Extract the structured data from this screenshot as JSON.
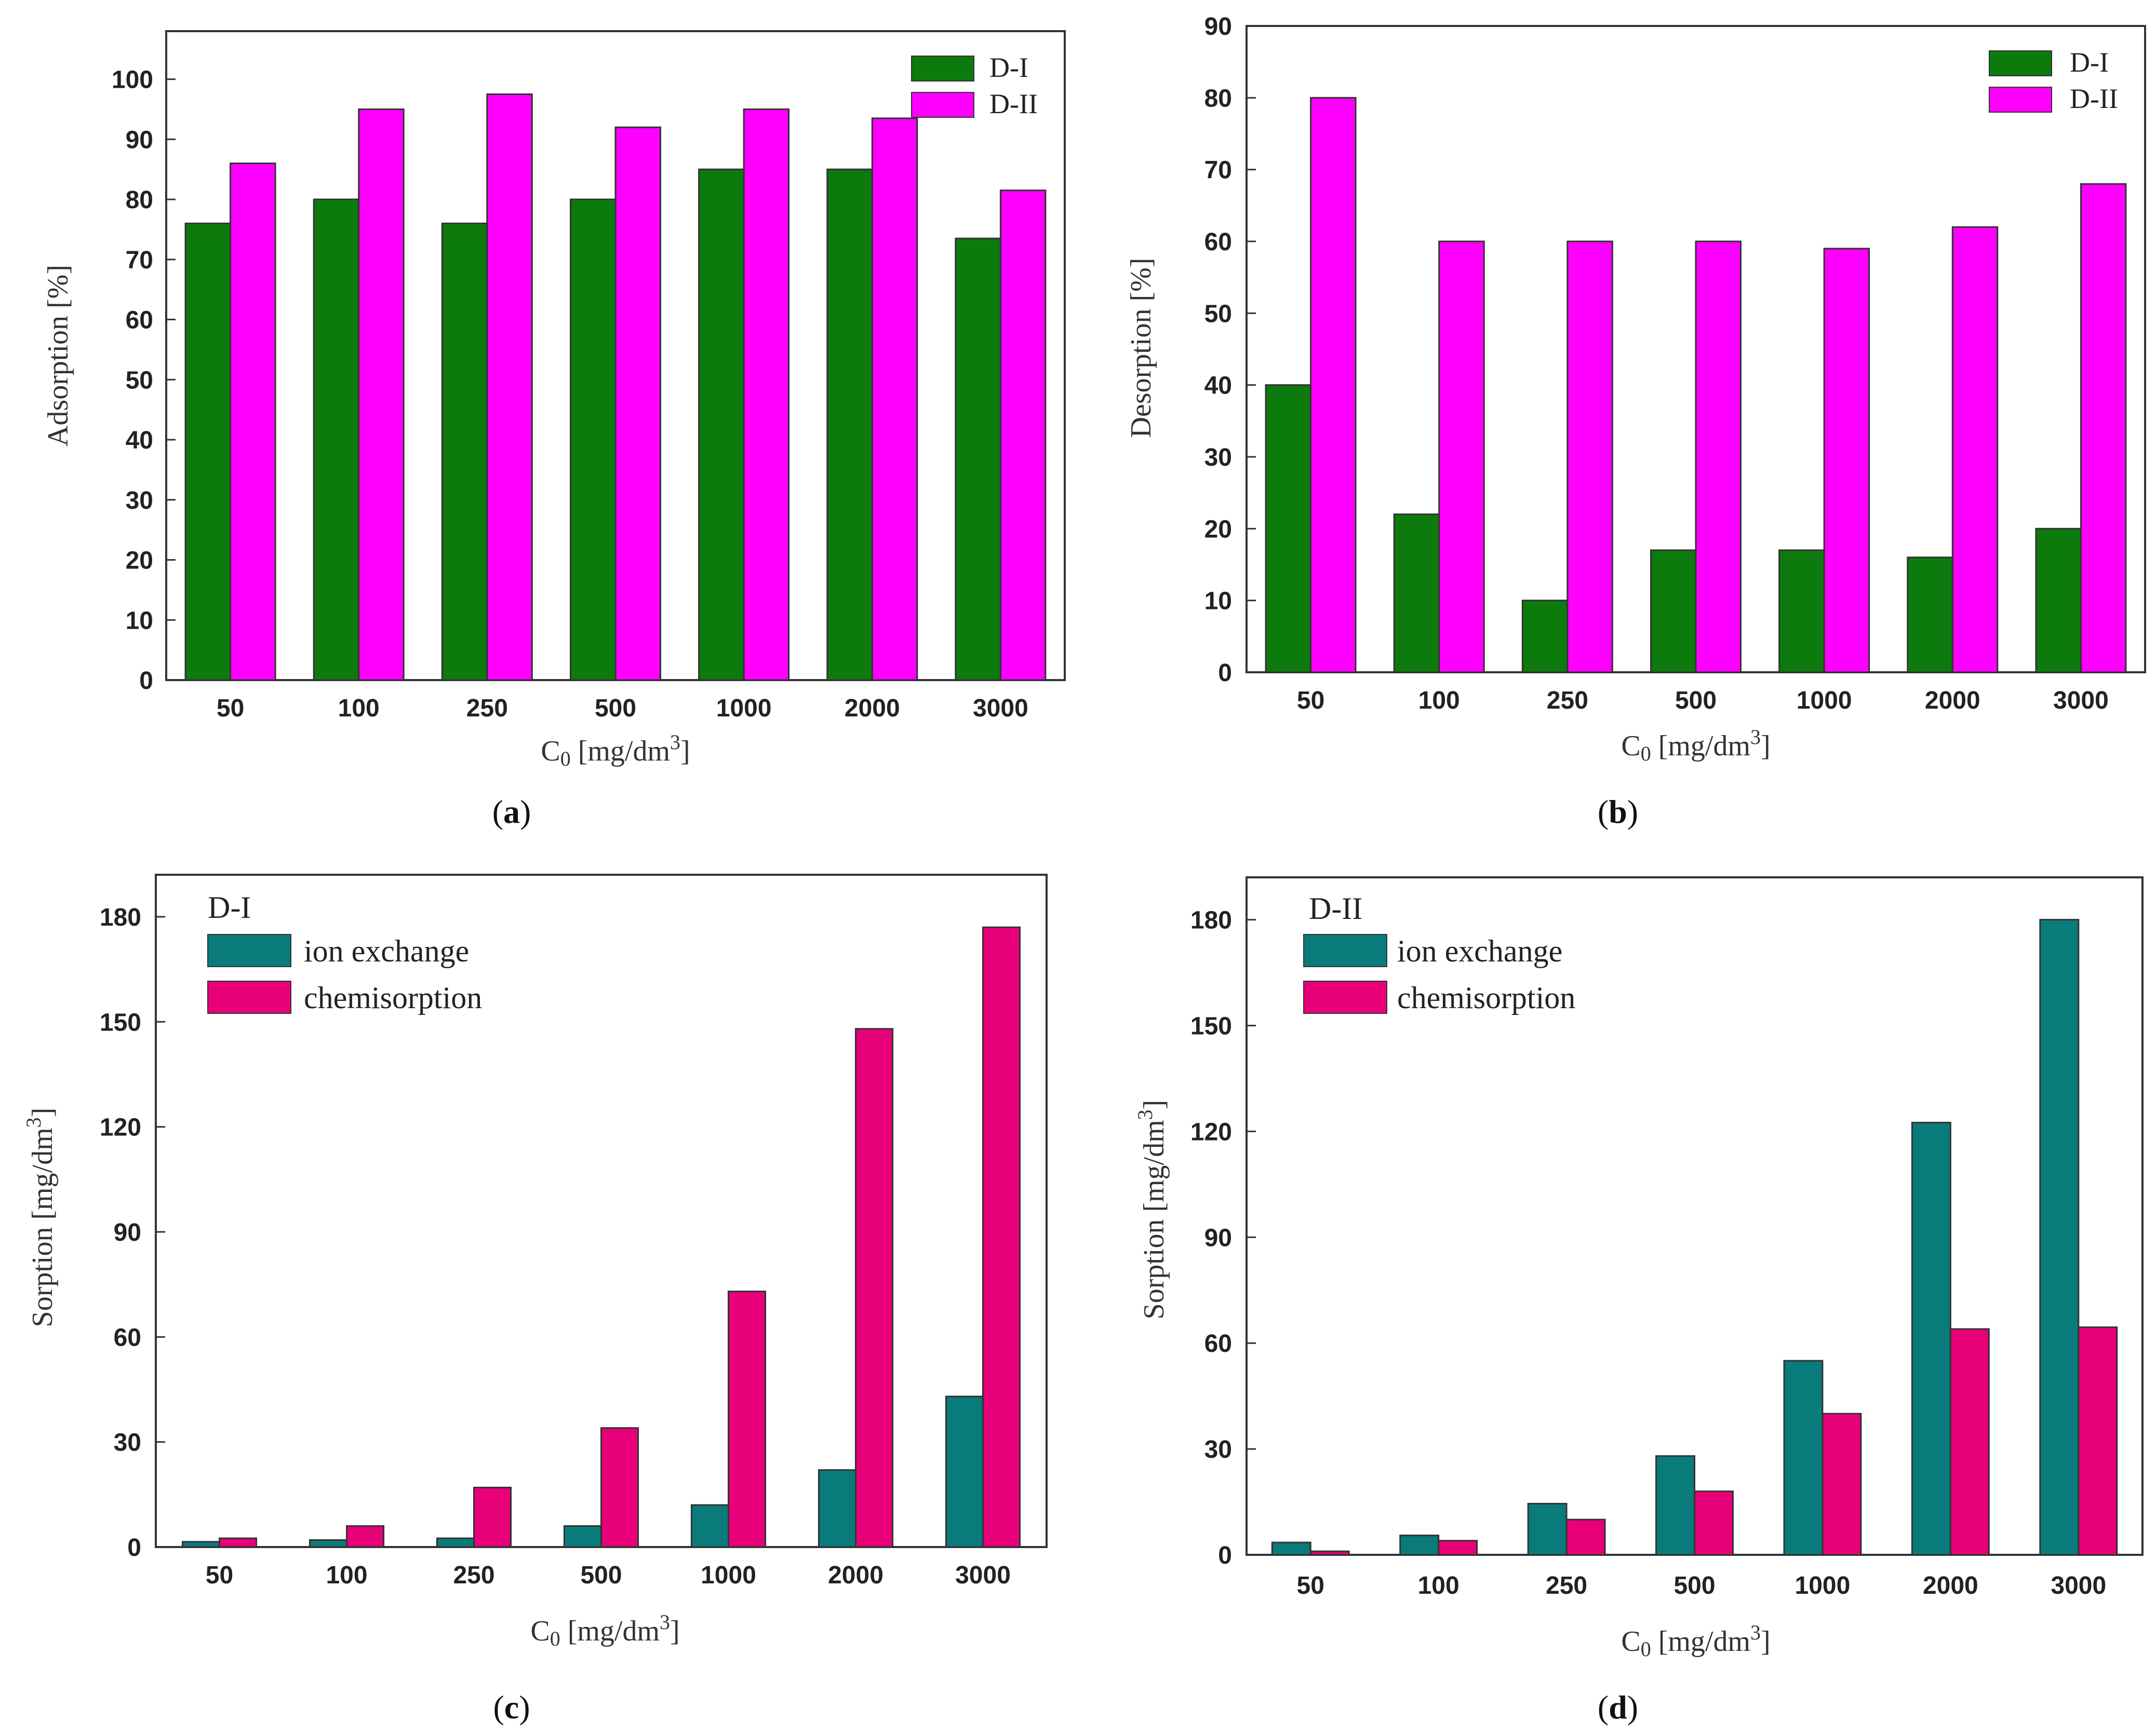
{
  "colors": {
    "dark_green": "#0d7a0d",
    "magenta": "#ff00ff",
    "teal": "#0a7b7b",
    "crimson": "#e8007a"
  },
  "chart_data": [
    {
      "id": "a",
      "type": "bar",
      "panel_label": "a",
      "xlabel_main": "C",
      "xlabel_sub": "0",
      "xlabel_rest": " [mg/dm",
      "xlabel_sup": "3",
      "xlabel_end": "]",
      "ylabel": "Adsorption [%]",
      "categories": [
        "50",
        "100",
        "250",
        "500",
        "1000",
        "2000",
        "3000"
      ],
      "ylim": [
        0,
        108
      ],
      "yticks": [
        "0",
        "10",
        "20",
        "30",
        "40",
        "50",
        "60",
        "70",
        "80",
        "90",
        "100"
      ],
      "legend_position": "top-right",
      "series": [
        {
          "name": "D-I",
          "color": "#0d7a0d",
          "values": [
            76,
            80,
            76,
            80,
            85,
            85,
            73.5
          ]
        },
        {
          "name": "D-II",
          "color": "#ff00ff",
          "values": [
            86,
            95,
            97.5,
            92,
            95,
            93.5,
            81.5
          ]
        }
      ]
    },
    {
      "id": "b",
      "type": "bar",
      "panel_label": "b",
      "xlabel_main": "C",
      "xlabel_sub": "0",
      "xlabel_rest": " [mg/dm",
      "xlabel_sup": "3",
      "xlabel_end": "]",
      "ylabel": "Desorption [%]",
      "categories": [
        "50",
        "100",
        "250",
        "500",
        "1000",
        "2000",
        "3000"
      ],
      "ylim": [
        0,
        90
      ],
      "yticks": [
        "0",
        "10",
        "20",
        "30",
        "40",
        "50",
        "60",
        "70",
        "80",
        "90"
      ],
      "legend_position": "top-right",
      "series": [
        {
          "name": "D-I",
          "color": "#0d7a0d",
          "values": [
            40,
            22,
            10,
            17,
            17,
            16,
            20
          ]
        },
        {
          "name": "D-II",
          "color": "#ff00ff",
          "values": [
            80,
            60,
            60,
            60,
            59,
            62,
            68
          ]
        }
      ]
    },
    {
      "id": "c",
      "type": "bar",
      "panel_label": "c",
      "xlabel_main": "C",
      "xlabel_sub": "0",
      "xlabel_rest": " [mg/dm",
      "xlabel_sup": "3",
      "xlabel_end": "]",
      "ylabel_main": "Sorption [mg/dm",
      "ylabel_sup": "3",
      "ylabel_end": "]",
      "legend_title": "D-I",
      "categories": [
        "50",
        "100",
        "250",
        "500",
        "1000",
        "2000",
        "3000"
      ],
      "ylim": [
        0,
        192
      ],
      "yticks": [
        "0",
        "30",
        "60",
        "90",
        "120",
        "150",
        "180"
      ],
      "legend_position": "top-left",
      "series": [
        {
          "name": "ion exchange",
          "color": "#0a7b7b",
          "values": [
            1.5,
            2,
            2.5,
            6,
            12,
            22,
            43
          ]
        },
        {
          "name": "chemisorption",
          "color": "#e8007a",
          "values": [
            2.5,
            6,
            17,
            34,
            73,
            148,
            177
          ]
        }
      ]
    },
    {
      "id": "d",
      "type": "bar",
      "panel_label": "d",
      "xlabel_main": "C",
      "xlabel_sub": "0",
      "xlabel_rest": " [mg/dm",
      "xlabel_sup": "3",
      "xlabel_end": "]",
      "ylabel_main": "Sorption [mg/dm",
      "ylabel_sup": "3",
      "ylabel_end": "]",
      "legend_title": "D-II",
      "categories": [
        "50",
        "100",
        "250",
        "500",
        "1000",
        "2000",
        "3000"
      ],
      "ylim": [
        0,
        192
      ],
      "yticks": [
        "0",
        "30",
        "60",
        "90",
        "120",
        "150",
        "180"
      ],
      "legend_position": "top-left",
      "series": [
        {
          "name": "ion exchange",
          "color": "#0a7b7b",
          "values": [
            3.5,
            5.5,
            14.5,
            28,
            55,
            122.5,
            180
          ]
        },
        {
          "name": "chemisorption",
          "color": "#e8007a",
          "values": [
            1,
            4,
            10,
            18,
            40,
            64,
            64.5
          ]
        }
      ]
    }
  ]
}
